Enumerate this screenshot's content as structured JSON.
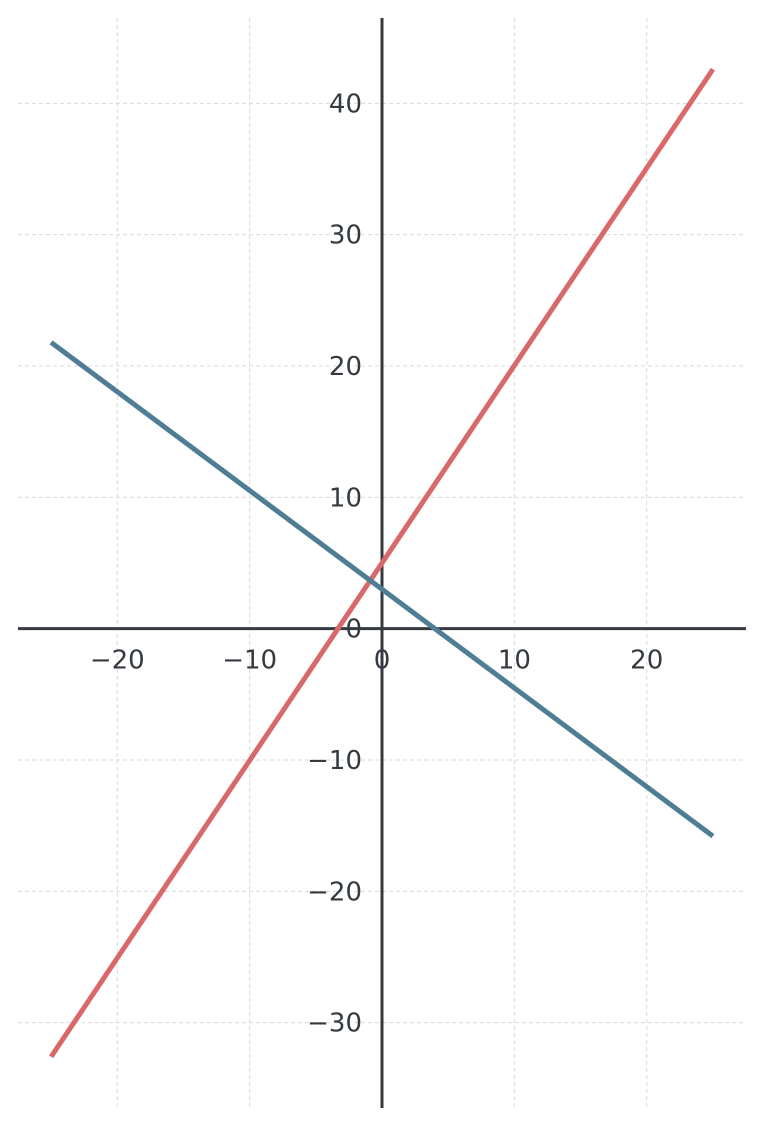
{
  "chart_data": {
    "type": "line",
    "title": "",
    "xlabel": "",
    "ylabel": "",
    "xlim": [
      -27.5,
      27.5
    ],
    "ylim": [
      -36.5,
      46.5
    ],
    "grid": true,
    "legend": "none",
    "x_ticks": [
      -20,
      -10,
      0,
      10,
      20
    ],
    "y_ticks": [
      -30,
      -20,
      -10,
      0,
      10,
      20,
      30,
      40
    ],
    "x_tick_labels": [
      "−20",
      "−10",
      "0",
      "10",
      "20"
    ],
    "y_tick_labels": [
      "−30",
      "−20",
      "−10",
      "0",
      "10",
      "20",
      "30",
      "40"
    ],
    "series": [
      {
        "color": "#d9686a",
        "x": [
          -25,
          25
        ],
        "y": [
          -32.6,
          42.6
        ]
      },
      {
        "color": "#4f7d93",
        "x": [
          -25,
          25
        ],
        "y": [
          21.8,
          -15.8
        ]
      }
    ]
  }
}
